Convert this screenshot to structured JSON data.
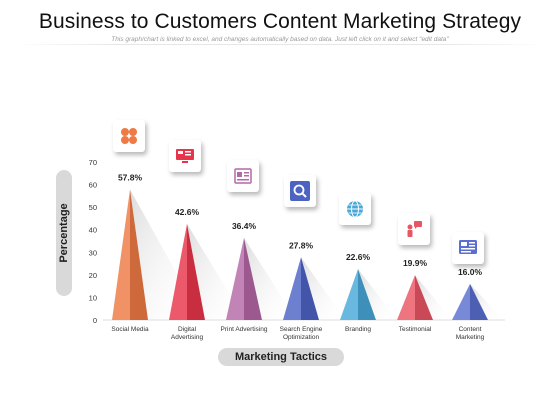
{
  "header": {
    "title": "Business to Customers Content Marketing Strategy",
    "subtitle": "This graph/chart is linked to excel, and changes automatically based on data. Just left click on it and select \"edit data\""
  },
  "chart_data": {
    "type": "bar",
    "categories": [
      "Social Media",
      "Digital Advertising",
      "Print Advertising",
      "Search Engine Optimization",
      "Branding",
      "Testimonial",
      "Content Marketing"
    ],
    "category_lines": [
      [
        "Social Media"
      ],
      [
        "Digital",
        "Advertising"
      ],
      [
        "Print Advertising"
      ],
      [
        "Search Engine",
        "Optimization"
      ],
      [
        "Branding"
      ],
      [
        "Testimonial"
      ],
      [
        "Content",
        "Marketing"
      ]
    ],
    "values": [
      57.8,
      42.6,
      36.4,
      27.8,
      22.6,
      19.9,
      16.0
    ],
    "value_labels": [
      "57.8%",
      "42.6%",
      "36.4%",
      "27.8%",
      "22.6%",
      "19.9%",
      "16.0%"
    ],
    "colors": [
      "#ee7a45",
      "#e8344a",
      "#b468a6",
      "#4d63c4",
      "#48a8d8",
      "#ea5564",
      "#5a6fcf"
    ],
    "icons": [
      "social-media-icon",
      "digital-advertising-icon",
      "print-advertising-icon",
      "seo-icon",
      "branding-globe-icon",
      "testimonial-icon",
      "content-marketing-icon"
    ],
    "ylabel": "Percentage",
    "xlabel": "Marketing Tactics",
    "ylim": [
      0,
      70
    ],
    "yticks": [
      0,
      10,
      20,
      30,
      40,
      50,
      60,
      70
    ],
    "grid": false
  }
}
